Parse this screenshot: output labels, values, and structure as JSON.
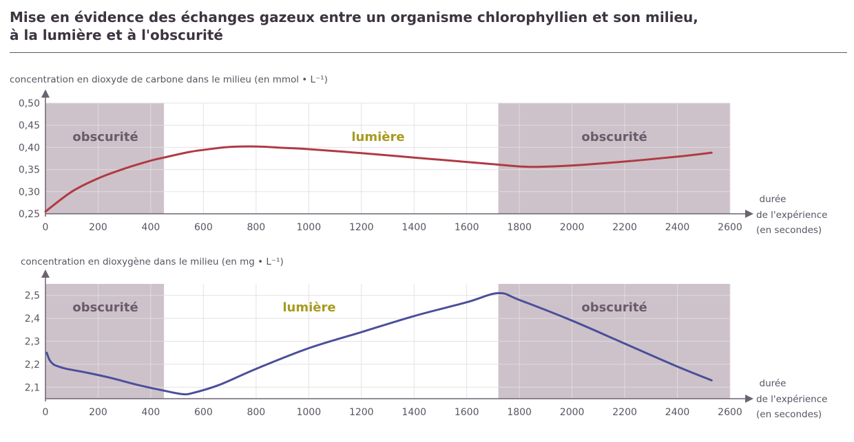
{
  "title_line1": "Mise en évidence des échanges gazeux entre un organisme chlorophyllien et son milieu,",
  "title_line2": "à la lumière et à l'obscurité",
  "colors": {
    "dark_zone": "#cdc2c9",
    "grid": "#e4dde2",
    "co2_line": "#b03a42",
    "o2_line": "#4a4f9a",
    "axis": "#6b6470"
  },
  "chart_data": [
    {
      "type": "line",
      "ylabel": "concentration en dioxyde de carbone dans le milieu (en mmol • L⁻¹)",
      "xlabel_lines": [
        "durée",
        "de l'expérience",
        "(en secondes)"
      ],
      "xlim": [
        0,
        2600
      ],
      "ylim": [
        0.25,
        0.5
      ],
      "x_ticks": [
        0,
        200,
        400,
        600,
        800,
        1000,
        1200,
        1400,
        1600,
        1800,
        2000,
        2200,
        2400,
        2600
      ],
      "y_ticks": [
        0.25,
        0.3,
        0.35,
        0.4,
        0.45,
        0.5
      ],
      "y_tick_labels": [
        "0,25",
        "0,30",
        "0,35",
        "0,40",
        "0,45",
        "0,50"
      ],
      "x_tick_labels": [
        "0",
        "200",
        "400",
        "600",
        "800",
        "1000",
        "1200",
        "1400",
        "1600",
        "1800",
        "2000",
        "2200",
        "2400",
        "2600"
      ],
      "zones": [
        {
          "label": "obscurité",
          "start": 0,
          "end": 450,
          "dark": true
        },
        {
          "label": "lumière",
          "start": 450,
          "end": 1720,
          "dark": false
        },
        {
          "label": "obscurité",
          "start": 1720,
          "end": 2600,
          "dark": true
        }
      ],
      "grid": true,
      "series": [
        {
          "x": [
            0,
            100,
            200,
            300,
            400,
            450,
            550,
            650,
            700,
            800,
            900,
            1000,
            1200,
            1400,
            1600,
            1720,
            1800,
            1870,
            2000,
            2200,
            2400,
            2530
          ],
          "y": [
            0.255,
            0.3,
            0.33,
            0.352,
            0.37,
            0.377,
            0.39,
            0.398,
            0.401,
            0.402,
            0.399,
            0.396,
            0.387,
            0.377,
            0.367,
            0.361,
            0.357,
            0.356,
            0.359,
            0.368,
            0.379,
            0.388
          ]
        }
      ]
    },
    {
      "type": "line",
      "ylabel": "concentration en dioxygène dans le milieu (en mg • L⁻¹)",
      "xlabel_lines": [
        "durée",
        "de l'expérience",
        "(en secondes)"
      ],
      "xlim": [
        0,
        2600
      ],
      "ylim": [
        2.05,
        2.55
      ],
      "x_ticks": [
        0,
        200,
        400,
        600,
        800,
        1000,
        1200,
        1400,
        1600,
        1800,
        2000,
        2200,
        2400,
        2600
      ],
      "y_ticks": [
        2.1,
        2.2,
        2.3,
        2.4,
        2.5
      ],
      "y_tick_labels": [
        "2,1",
        "2,2",
        "2,3",
        "2,4",
        "2,5"
      ],
      "x_tick_labels": [
        "0",
        "200",
        "400",
        "600",
        "800",
        "1000",
        "1200",
        "1400",
        "1600",
        "1800",
        "2000",
        "2200",
        "2400",
        "2600"
      ],
      "zones": [
        {
          "label": "obscurité",
          "start": 0,
          "end": 450,
          "dark": true
        },
        {
          "label": "lumière",
          "start": 450,
          "end": 1720,
          "dark": false
        },
        {
          "label": "obscurité",
          "start": 1720,
          "end": 2600,
          "dark": true
        }
      ],
      "grid": true,
      "series": [
        {
          "x": [
            5,
            15,
            30,
            50,
            80,
            150,
            250,
            350,
            450,
            520,
            560,
            660,
            800,
            1000,
            1200,
            1400,
            1600,
            1720,
            1800,
            2000,
            2200,
            2400,
            2530
          ],
          "y": [
            2.25,
            2.22,
            2.2,
            2.19,
            2.18,
            2.165,
            2.14,
            2.11,
            2.085,
            2.07,
            2.075,
            2.11,
            2.18,
            2.27,
            2.34,
            2.41,
            2.47,
            2.51,
            2.48,
            2.39,
            2.29,
            2.19,
            2.13
          ]
        }
      ]
    }
  ]
}
